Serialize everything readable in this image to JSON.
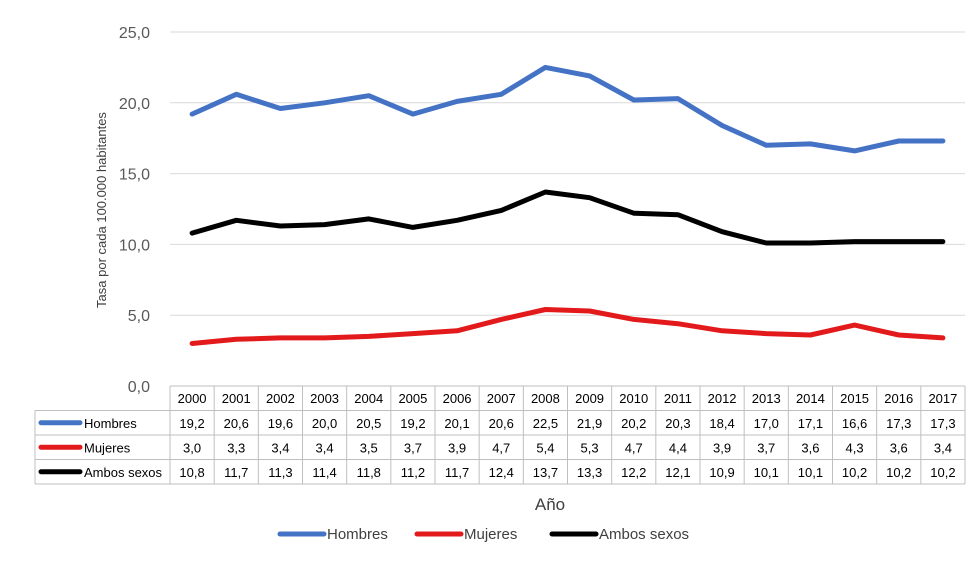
{
  "chart_data": {
    "type": "line",
    "title": "",
    "ylabel": "Tasa por cada 100.000 habitantes",
    "xlabel": "Año",
    "ylim": [
      0,
      25
    ],
    "y_ticks": [
      "0,0",
      "5,0",
      "10,0",
      "15,0",
      "20,0",
      "25,0"
    ],
    "grid": true,
    "legend_position": "bottom",
    "categories": [
      "2000",
      "2001",
      "2002",
      "2003",
      "2004",
      "2005",
      "2006",
      "2007",
      "2008",
      "2009",
      "2010",
      "2011",
      "2012",
      "2013",
      "2014",
      "2015",
      "2016",
      "2017"
    ],
    "series": [
      {
        "name": "Hombres",
        "color": "#4472C4",
        "values": [
          19.2,
          20.6,
          19.6,
          20.0,
          20.5,
          19.2,
          20.1,
          20.6,
          22.5,
          21.9,
          20.2,
          20.3,
          18.4,
          17.0,
          17.1,
          16.6,
          17.3,
          17.3
        ],
        "labels": [
          "19,2",
          "20,6",
          "19,6",
          "20,0",
          "20,5",
          "19,2",
          "20,1",
          "20,6",
          "22,5",
          "21,9",
          "20,2",
          "20,3",
          "18,4",
          "17,0",
          "17,1",
          "16,6",
          "17,3",
          "17,3"
        ]
      },
      {
        "name": "Mujeres",
        "color": "#E31A1C",
        "values": [
          3.0,
          3.3,
          3.4,
          3.4,
          3.5,
          3.7,
          3.9,
          4.7,
          5.4,
          5.3,
          4.7,
          4.4,
          3.9,
          3.7,
          3.6,
          4.3,
          3.6,
          3.4
        ],
        "labels": [
          "3,0",
          "3,3",
          "3,4",
          "3,4",
          "3,5",
          "3,7",
          "3,9",
          "4,7",
          "5,4",
          "5,3",
          "4,7",
          "4,4",
          "3,9",
          "3,7",
          "3,6",
          "4,3",
          "3,6",
          "3,4"
        ]
      },
      {
        "name": "Ambos sexos",
        "color": "#000000",
        "values": [
          10.8,
          11.7,
          11.3,
          11.4,
          11.8,
          11.2,
          11.7,
          12.4,
          13.7,
          13.3,
          12.2,
          12.1,
          10.9,
          10.1,
          10.1,
          10.2,
          10.2,
          10.2
        ],
        "labels": [
          "10,8",
          "11,7",
          "11,3",
          "11,4",
          "11,8",
          "11,2",
          "11,7",
          "12,4",
          "13,7",
          "13,3",
          "12,2",
          "12,1",
          "10,9",
          "10,1",
          "10,1",
          "10,2",
          "10,2",
          "10,2"
        ]
      }
    ]
  }
}
